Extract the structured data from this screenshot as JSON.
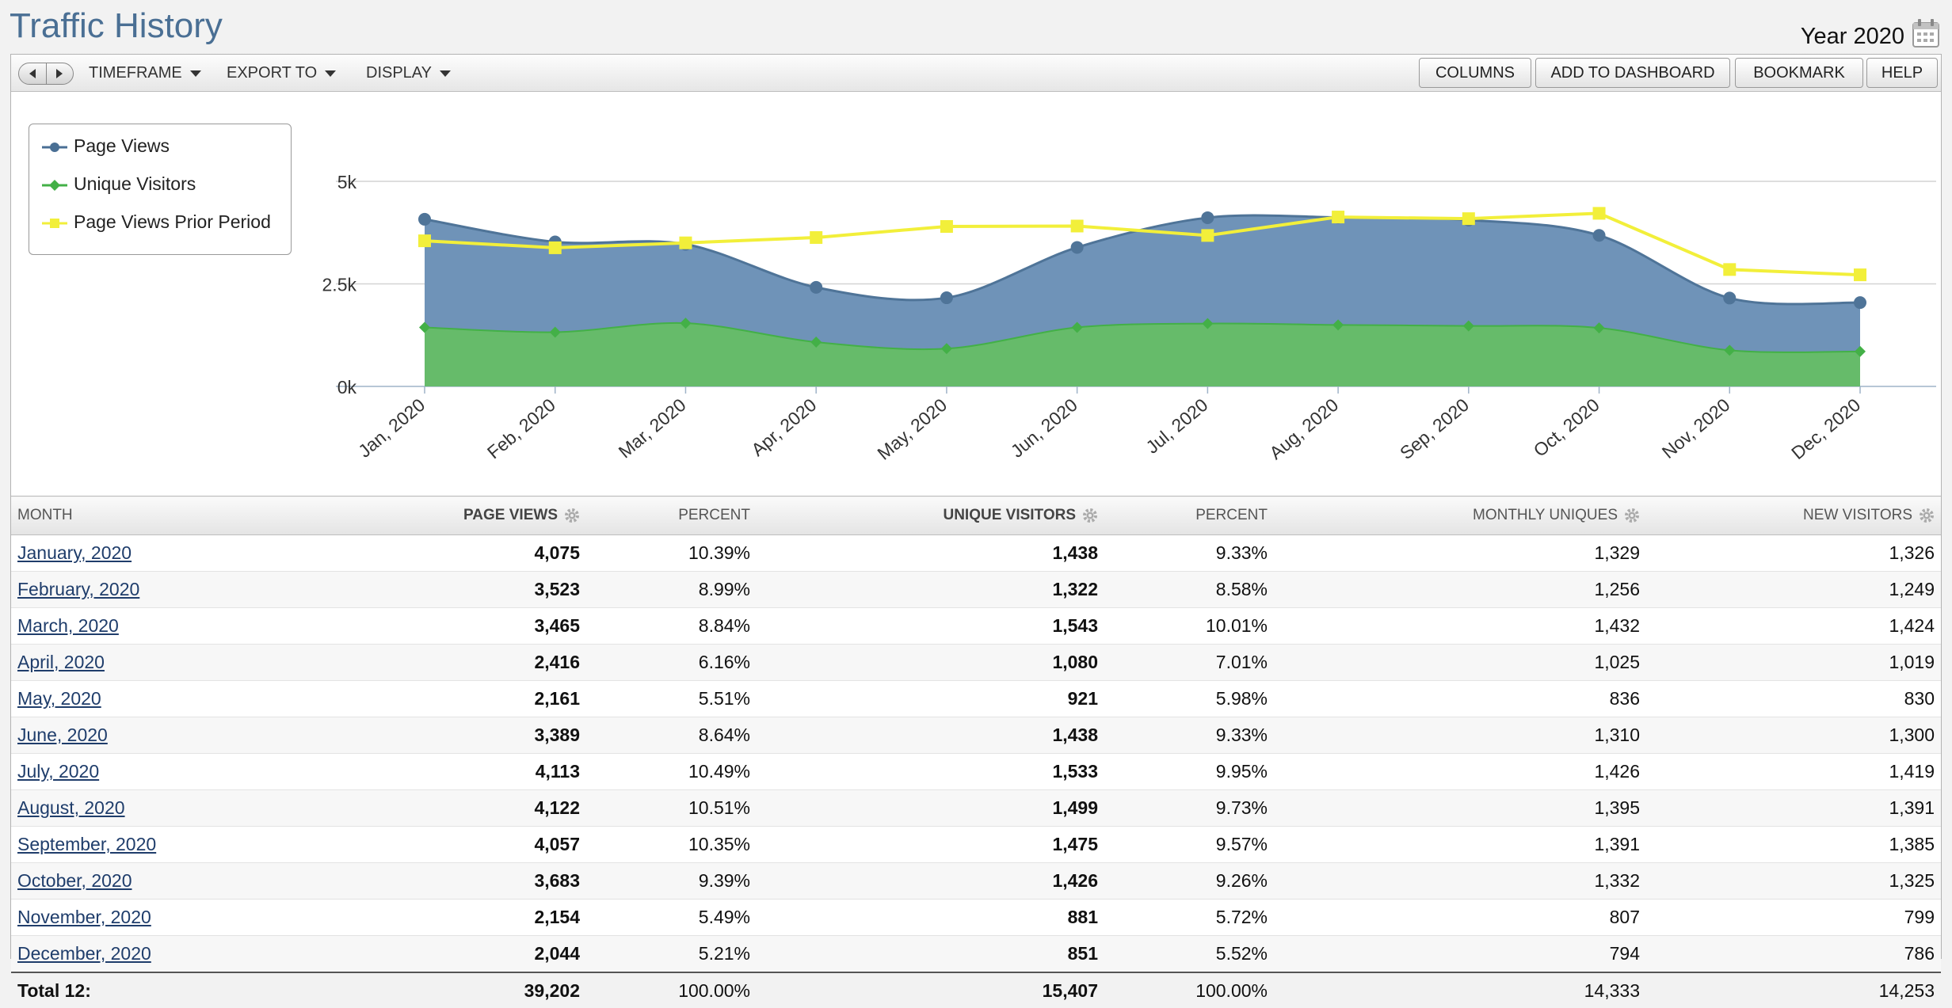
{
  "header": {
    "title": "Traffic History",
    "period": "Year 2020"
  },
  "toolbar": {
    "menus": [
      "TIMEFRAME",
      "EXPORT TO",
      "DISPLAY"
    ],
    "buttons": [
      "COLUMNS",
      "ADD TO DASHBOARD",
      "BOOKMARK",
      "HELP"
    ]
  },
  "chart_data": {
    "type": "area",
    "categories": [
      "Jan, 2020",
      "Feb, 2020",
      "Mar, 2020",
      "Apr, 2020",
      "May, 2020",
      "Jun, 2020",
      "Jul, 2020",
      "Aug, 2020",
      "Sep, 2020",
      "Oct, 2020",
      "Nov, 2020",
      "Dec, 2020"
    ],
    "yticks": [
      "0k",
      "2.5k",
      "5k"
    ],
    "ylim": [
      0,
      5000
    ],
    "legend_position": "top-left",
    "series": [
      {
        "name": "Page Views",
        "type": "area",
        "color": "#6f93b8",
        "values": [
          4075,
          3523,
          3465,
          2416,
          2161,
          3389,
          4113,
          4122,
          4057,
          3683,
          2154,
          2044
        ]
      },
      {
        "name": "Unique Visitors",
        "type": "area",
        "color": "#66bb6a",
        "values": [
          1438,
          1322,
          1543,
          1080,
          921,
          1438,
          1533,
          1499,
          1475,
          1426,
          881,
          851
        ]
      },
      {
        "name": "Page Views Prior Period",
        "type": "line",
        "color": "#f2ef3a",
        "values": [
          3550,
          3380,
          3500,
          3630,
          3900,
          3910,
          3680,
          4130,
          4090,
          4220,
          2850,
          2720
        ]
      }
    ]
  },
  "table": {
    "columns": [
      "MONTH",
      "PAGE VIEWS",
      "PERCENT",
      "UNIQUE VISITORS",
      "PERCENT",
      "MONTHLY UNIQUES",
      "NEW VISITORS"
    ],
    "rows": [
      [
        "January, 2020",
        "4,075",
        "10.39%",
        "1,438",
        "9.33%",
        "1,329",
        "1,326"
      ],
      [
        "February, 2020",
        "3,523",
        "8.99%",
        "1,322",
        "8.58%",
        "1,256",
        "1,249"
      ],
      [
        "March, 2020",
        "3,465",
        "8.84%",
        "1,543",
        "10.01%",
        "1,432",
        "1,424"
      ],
      [
        "April, 2020",
        "2,416",
        "6.16%",
        "1,080",
        "7.01%",
        "1,025",
        "1,019"
      ],
      [
        "May, 2020",
        "2,161",
        "5.51%",
        "921",
        "5.98%",
        "836",
        "830"
      ],
      [
        "June, 2020",
        "3,389",
        "8.64%",
        "1,438",
        "9.33%",
        "1,310",
        "1,300"
      ],
      [
        "July, 2020",
        "4,113",
        "10.49%",
        "1,533",
        "9.95%",
        "1,426",
        "1,419"
      ],
      [
        "August, 2020",
        "4,122",
        "10.51%",
        "1,499",
        "9.73%",
        "1,395",
        "1,391"
      ],
      [
        "September, 2020",
        "4,057",
        "10.35%",
        "1,475",
        "9.57%",
        "1,391",
        "1,385"
      ],
      [
        "October, 2020",
        "3,683",
        "9.39%",
        "1,426",
        "9.26%",
        "1,332",
        "1,325"
      ],
      [
        "November, 2020",
        "2,154",
        "5.49%",
        "881",
        "5.72%",
        "807",
        "799"
      ],
      [
        "December, 2020",
        "2,044",
        "5.21%",
        "851",
        "5.52%",
        "794",
        "786"
      ]
    ],
    "total": [
      "Total 12:",
      "39,202",
      "100.00%",
      "15,407",
      "100.00%",
      "14,333",
      "14,253"
    ]
  }
}
